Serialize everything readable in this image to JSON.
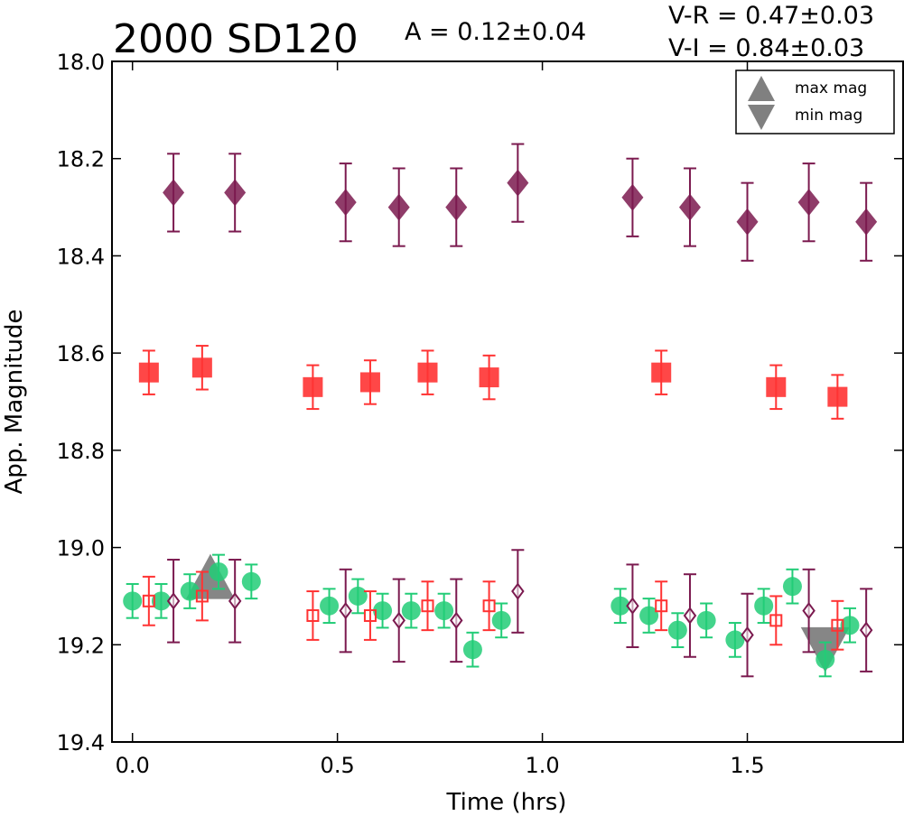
{
  "chart_data": {
    "type": "scatter",
    "title": "2000 SD120",
    "xlabel": "Time (hrs)",
    "ylabel": "App. Magnitude",
    "xlim": [
      -0.05,
      1.88
    ],
    "ylim": [
      19.4,
      18.0
    ],
    "y_inverted": true,
    "grid": false,
    "xticks": [
      "0.0",
      "0.5",
      "1.0",
      "1.5"
    ],
    "yticks": [
      "18.0",
      "18.2",
      "18.4",
      "18.6",
      "18.8",
      "19.0",
      "19.2",
      "19.4"
    ],
    "annotations": {
      "amplitude": "A  = 0.12±0.04",
      "v_r": "V-R = 0.47±0.03",
      "v_i": "V-I  = 0.84±0.03"
    },
    "legend": {
      "placement": "top-right",
      "entries": [
        {
          "label": "max mag",
          "marker": "triangle-up",
          "color": "#808080"
        },
        {
          "label": "min mag",
          "marker": "triangle-down",
          "color": "#808080"
        }
      ]
    },
    "colors": {
      "I": "#7b1a4f",
      "R": "#ff3333",
      "V": "#22cc77",
      "extrema": "#808080"
    },
    "series": [
      {
        "marker": "diamond-filled",
        "color": "#7b1a4f",
        "x": [
          0.1,
          0.25,
          0.52,
          0.65,
          0.79,
          0.94,
          1.22,
          1.36,
          1.5,
          1.65,
          1.79
        ],
        "y": [
          18.27,
          18.27,
          18.29,
          18.3,
          18.3,
          18.25,
          18.28,
          18.3,
          18.33,
          18.29,
          18.33
        ],
        "err": [
          0.08,
          0.08,
          0.08,
          0.08,
          0.08,
          0.08,
          0.08,
          0.08,
          0.08,
          0.08,
          0.08
        ]
      },
      {
        "marker": "square-filled",
        "color": "#ff3333",
        "x": [
          0.04,
          0.17,
          0.44,
          0.58,
          0.72,
          0.87,
          1.29,
          1.57,
          1.72
        ],
        "y": [
          18.64,
          18.63,
          18.67,
          18.66,
          18.64,
          18.65,
          18.64,
          18.67,
          18.69
        ],
        "err": [
          0.045,
          0.045,
          0.045,
          0.045,
          0.045,
          0.045,
          0.045,
          0.045,
          0.045
        ]
      },
      {
        "marker": "circle-filled",
        "color": "#22cc77",
        "x": [
          0.0,
          0.07,
          0.14,
          0.21,
          0.29,
          0.48,
          0.55,
          0.61,
          0.68,
          0.76,
          0.83,
          0.9,
          1.19,
          1.26,
          1.33,
          1.4,
          1.47,
          1.54,
          1.61,
          1.69,
          1.75
        ],
        "y": [
          19.11,
          19.11,
          19.09,
          19.05,
          19.07,
          19.12,
          19.1,
          19.13,
          19.13,
          19.13,
          19.21,
          19.15,
          19.12,
          19.14,
          19.17,
          19.15,
          19.19,
          19.12,
          19.08,
          19.23,
          19.16
        ],
        "err": [
          0.035,
          0.035,
          0.035,
          0.035,
          0.035,
          0.035,
          0.035,
          0.035,
          0.035,
          0.035,
          0.035,
          0.035,
          0.035,
          0.035,
          0.035,
          0.035,
          0.035,
          0.035,
          0.035,
          0.035,
          0.035
        ]
      },
      {
        "marker": "square-open",
        "color": "#ff3333",
        "x": [
          0.04,
          0.17,
          0.44,
          0.58,
          0.72,
          0.87,
          1.29,
          1.57,
          1.72
        ],
        "y": [
          19.11,
          19.1,
          19.14,
          19.14,
          19.12,
          19.12,
          19.12,
          19.15,
          19.16
        ],
        "err": [
          0.05,
          0.05,
          0.05,
          0.05,
          0.05,
          0.05,
          0.05,
          0.05,
          0.05
        ]
      },
      {
        "marker": "diamond-open",
        "color": "#7b1a4f",
        "x": [
          0.1,
          0.25,
          0.52,
          0.65,
          0.79,
          0.94,
          1.22,
          1.36,
          1.5,
          1.65,
          1.79
        ],
        "y": [
          19.11,
          19.11,
          19.13,
          19.15,
          19.15,
          19.09,
          19.12,
          19.14,
          19.18,
          19.13,
          19.17
        ],
        "err": [
          0.085,
          0.085,
          0.085,
          0.085,
          0.085,
          0.085,
          0.085,
          0.085,
          0.085,
          0.085,
          0.085
        ]
      }
    ],
    "extrema": [
      {
        "kind": "max",
        "marker": "triangle-up",
        "x": 0.19,
        "y": 19.08
      },
      {
        "kind": "min",
        "marker": "triangle-down",
        "x": 1.69,
        "y": 19.19
      }
    ]
  }
}
